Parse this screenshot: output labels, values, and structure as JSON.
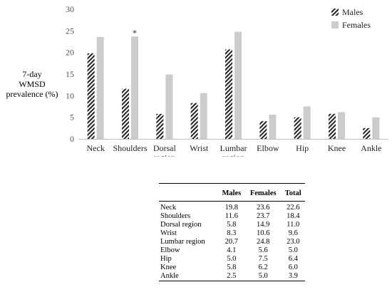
{
  "chart_data": {
    "type": "bar",
    "ylabel": [
      "7-day",
      "WMSD",
      "prevalence (%)"
    ],
    "ylim": [
      0,
      30
    ],
    "yticks": [
      0,
      5,
      10,
      15,
      20,
      25,
      30
    ],
    "grid": false,
    "legend_position": "top-right",
    "categories": [
      [
        "Neck"
      ],
      [
        "Shoulders"
      ],
      [
        "Dorsal",
        "region"
      ],
      [
        "Wrist"
      ],
      [
        "Lumbar",
        "region"
      ],
      [
        "Elbow"
      ],
      [
        "Hip"
      ],
      [
        "Knee"
      ],
      [
        "Ankle"
      ]
    ],
    "series": [
      {
        "name": "Males",
        "pattern": "hatched",
        "values": [
          19.8,
          11.6,
          5.8,
          8.3,
          20.7,
          4.1,
          5.0,
          5.8,
          2.5
        ]
      },
      {
        "name": "Females",
        "color": "#cccccc",
        "values": [
          23.6,
          23.7,
          14.9,
          10.6,
          24.8,
          5.6,
          7.5,
          6.2,
          5.0
        ]
      }
    ],
    "annotations": [
      {
        "category_index": 1,
        "text": "*"
      }
    ]
  },
  "table": {
    "headers": [
      "",
      "Males",
      "Females",
      "Total"
    ],
    "rows": [
      [
        "Neck",
        "19.8",
        "23.6",
        "22.6"
      ],
      [
        "Shoulders",
        "11.6",
        "23.7",
        "18.4"
      ],
      [
        "Dorsal region",
        "5.8",
        "14.9",
        "11.0"
      ],
      [
        "Wrist",
        "8.3",
        "10.6",
        "9.6"
      ],
      [
        "Lumbar region",
        "20.7",
        "24.8",
        "23.0"
      ],
      [
        "Elbow",
        "4.1",
        "5.6",
        "5.0"
      ],
      [
        "Hip",
        "5.0",
        "7.5",
        "6.4"
      ],
      [
        "Knee",
        "5.8",
        "6.2",
        "6.0"
      ],
      [
        "Ankle",
        "2.5",
        "5.0",
        "3.9"
      ]
    ]
  }
}
